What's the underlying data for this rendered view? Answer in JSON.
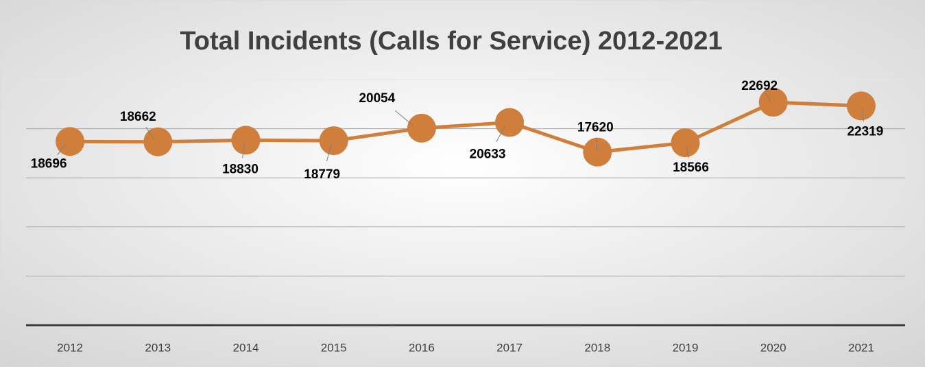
{
  "chart_data": {
    "type": "line",
    "title": "Total Incidents (Calls for Service) 2012-2021",
    "categories": [
      "2012",
      "2013",
      "2014",
      "2015",
      "2016",
      "2017",
      "2018",
      "2019",
      "2020",
      "2021"
    ],
    "series": [
      {
        "name": "Total Incidents",
        "color": "#cf7e3b",
        "values": [
          18696,
          18662,
          18830,
          18779,
          20054,
          20633,
          17620,
          18566,
          22692,
          22319
        ]
      }
    ],
    "ylim": [
      0,
      25000
    ],
    "yticks": [
      0,
      5000,
      10000,
      15000,
      20000,
      25000
    ],
    "grid": true
  }
}
